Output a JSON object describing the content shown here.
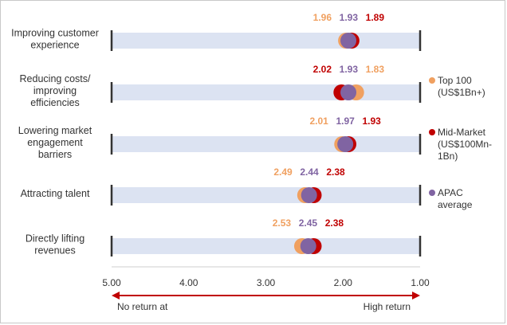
{
  "chart_data": {
    "type": "scatter",
    "title": "",
    "xlabel": "",
    "ylabel": "",
    "xlim": [
      5.0,
      1.0
    ],
    "x_reversed": true,
    "x_ticks": [
      "5.00",
      "4.00",
      "3.00",
      "2.00",
      "1.00"
    ],
    "x_tick_values": [
      5,
      4,
      3,
      2,
      1
    ],
    "categories": [
      [
        "Improving customer",
        "experience"
      ],
      [
        "Reducing costs/",
        "improving",
        "efficiencies"
      ],
      [
        "Lowering market",
        "engagement",
        "barriers"
      ],
      [
        "Attracting talent"
      ],
      [
        "Directly lifting",
        "revenues"
      ]
    ],
    "series": [
      {
        "name": "Top 100 (US$1Bn+)",
        "legend_lines": [
          "Top 100",
          "(US$1Bn+)"
        ],
        "color": "#F0A060",
        "values": [
          1.96,
          1.83,
          2.01,
          2.49,
          2.53
        ],
        "labels": [
          "1.96",
          "1.83",
          "2.01",
          "2.49",
          "2.53"
        ]
      },
      {
        "name": "Mid-Market (US$100Mn-1Bn)",
        "legend_lines": [
          "Mid-Market",
          "(US$100Mn-",
          "1Bn)"
        ],
        "color": "#C00000",
        "values": [
          1.89,
          2.02,
          1.93,
          2.38,
          2.38
        ],
        "labels": [
          "1.89",
          "2.02",
          "1.93",
          "2.38",
          "2.38"
        ]
      },
      {
        "name": "APAC average",
        "legend_lines": [
          "APAC",
          "average"
        ],
        "color": "#8064A2",
        "values": [
          1.93,
          1.93,
          1.97,
          2.44,
          2.45
        ],
        "labels": [
          "1.93",
          "1.93",
          "1.97",
          "2.44",
          "2.45"
        ]
      }
    ],
    "direction": {
      "left": "No return at",
      "right": "High return"
    },
    "legend_position": "right",
    "grid": false,
    "colors": {
      "track": "#DCE3F2",
      "axis": "#333333",
      "arrow": "#C00000"
    }
  }
}
